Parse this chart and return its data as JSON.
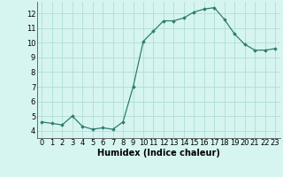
{
  "x": [
    0,
    1,
    2,
    3,
    4,
    5,
    6,
    7,
    8,
    9,
    10,
    11,
    12,
    13,
    14,
    15,
    16,
    17,
    18,
    19,
    20,
    21,
    22,
    23
  ],
  "y": [
    4.6,
    4.5,
    4.4,
    5.0,
    4.3,
    4.1,
    4.2,
    4.1,
    4.6,
    7.0,
    10.1,
    10.8,
    11.5,
    11.5,
    11.7,
    12.1,
    12.3,
    12.4,
    11.6,
    10.6,
    9.9,
    9.5,
    9.5,
    9.6
  ],
  "xlabel": "Humidex (Indice chaleur)",
  "ylim": [
    3.5,
    12.8
  ],
  "xlim": [
    -0.5,
    23.5
  ],
  "yticks": [
    4,
    5,
    6,
    7,
    8,
    9,
    10,
    11,
    12
  ],
  "xticks": [
    0,
    1,
    2,
    3,
    4,
    5,
    6,
    7,
    8,
    9,
    10,
    11,
    12,
    13,
    14,
    15,
    16,
    17,
    18,
    19,
    20,
    21,
    22,
    23
  ],
  "line_color": "#2e7d6e",
  "marker": "D",
  "marker_size": 1.8,
  "bg_color": "#d6f5f0",
  "grid_color": "#b0ddd8",
  "xlabel_fontsize": 7,
  "tick_fontsize": 6
}
